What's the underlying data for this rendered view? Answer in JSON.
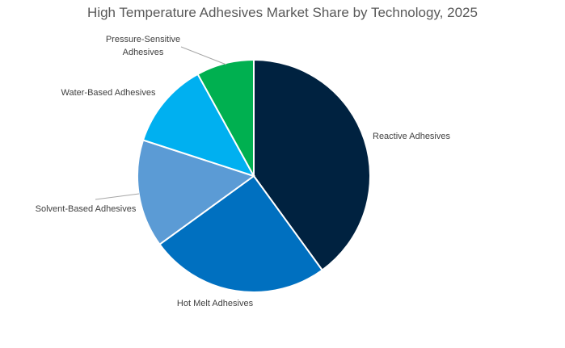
{
  "chart_data": {
    "type": "pie",
    "title": "High Temperature Adhesives Market Share by Technology, 2025",
    "start_angle_deg": 0,
    "direction": "clockwise",
    "legend": "none",
    "slices": [
      {
        "label": "Reactive Adhesives",
        "value": 40,
        "color": "#002240"
      },
      {
        "label": "Hot Melt Adhesives",
        "value": 25,
        "color": "#0070C0"
      },
      {
        "label": "Solvent-Based Adhesives",
        "value": 15,
        "color": "#5B9BD5"
      },
      {
        "label": "Water-Based Adhesives",
        "value": 12,
        "color": "#00B0F0"
      },
      {
        "label": "Pressure-Sensitive Adhesives",
        "value": 8,
        "color": "#00B050"
      }
    ]
  }
}
